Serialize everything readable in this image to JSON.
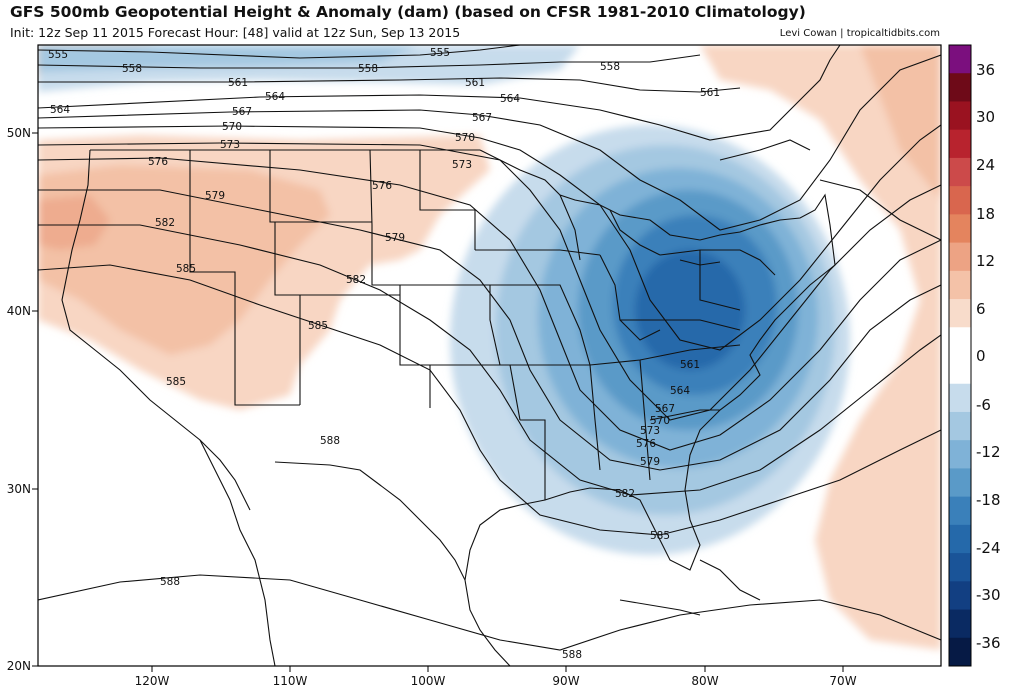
{
  "header": {
    "title": "GFS 500mb Geopotential Height & Anomaly (dam) (based on CFSR 1981-2010 Climatology)",
    "subtitle": "Init: 12z Sep 11 2015   Forecast Hour: [48]   valid at 12z Sun, Sep 13 2015",
    "credit": "Levi Cowan | tropicaltidbits.com"
  },
  "map": {
    "lon_ticks": [
      "120W",
      "110W",
      "100W",
      "90W",
      "80W",
      "70W"
    ],
    "lat_ticks": [
      "50N",
      "40N",
      "30N",
      "20N"
    ],
    "contours": [
      {
        "label": "555",
        "color": "#111111"
      },
      {
        "label": "558",
        "color": "#111111"
      },
      {
        "label": "561",
        "color": "#111111"
      },
      {
        "label": "564",
        "color": "#111111"
      },
      {
        "label": "567",
        "color": "#111111"
      },
      {
        "label": "570",
        "color": "#111111"
      },
      {
        "label": "573",
        "color": "#111111"
      },
      {
        "label": "576",
        "color": "#111111"
      },
      {
        "label": "579",
        "color": "#111111"
      },
      {
        "label": "582",
        "color": "#111111"
      },
      {
        "label": "585",
        "color": "#111111"
      },
      {
        "label": "588",
        "color": "#111111"
      }
    ]
  },
  "colorbar": {
    "ticks": [
      "36",
      "30",
      "24",
      "18",
      "12",
      "6",
      "0",
      "-6",
      "-12",
      "-18",
      "-24",
      "-30",
      "-36"
    ],
    "colors": [
      "#7b0f7e",
      "#6e0a18",
      "#9a1220",
      "#b8232e",
      "#cc4a4a",
      "#d9664e",
      "#e4845e",
      "#eda384",
      "#f4c2a8",
      "#f8dccb",
      "#ffffff",
      "#ffffff",
      "#c7dcec",
      "#a4c8e1",
      "#7fb2d7",
      "#5a9ac8",
      "#3a80ba",
      "#2569aa",
      "#1a5498",
      "#123f82",
      "#0a2a62",
      "#061a45"
    ]
  }
}
